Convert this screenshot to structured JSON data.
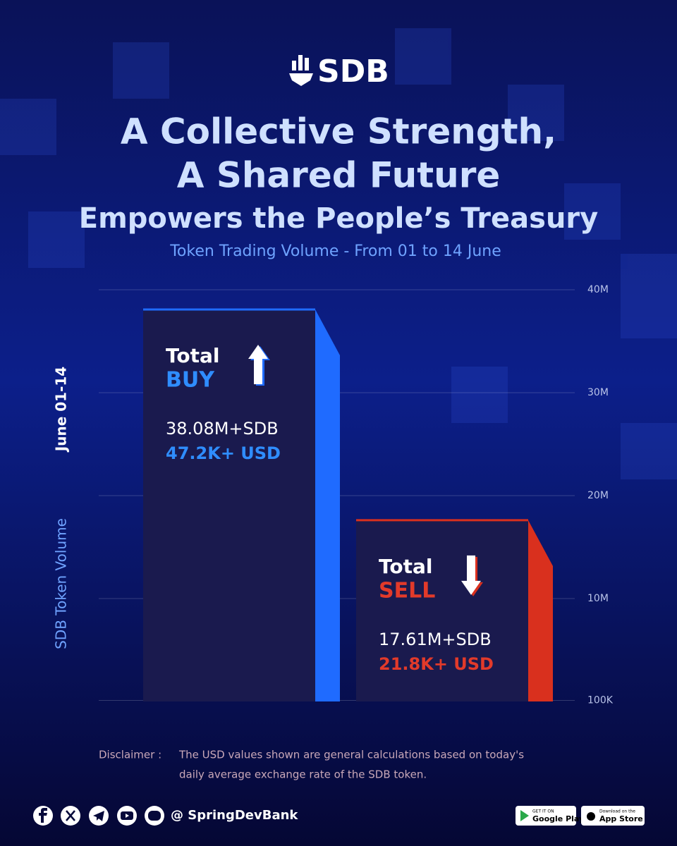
{
  "header": {
    "brand": "SDB"
  },
  "chart_data": {
    "type": "bar",
    "title_lines": [
      "A Collective Strength,",
      "A Shared Future"
    ],
    "subtitle": "Empowers the People’s Treasury",
    "caption": "Token Trading Volume - From 01 to 14 June",
    "y_axis_label": "SDB Token Volume",
    "period_label": "June 01-14",
    "categories": [
      "BUY",
      "SELL"
    ],
    "bar_titles": [
      "Total",
      "Total"
    ],
    "values": [
      38080000,
      17610000
    ],
    "value_labels": [
      "38.08M+SDB",
      "17.61M+SDB"
    ],
    "usd_labels": [
      "47.2K+ USD",
      "21.8K+ USD"
    ],
    "colors": [
      "#1f6bff",
      "#d9301e"
    ],
    "label_colors": [
      "#2f8dff",
      "#e23a2a"
    ],
    "ylim": [
      0,
      40000000
    ],
    "yticks": [
      {
        "value": 100000,
        "label": "100K"
      },
      {
        "value": 10000000,
        "label": "10M"
      },
      {
        "value": 20000000,
        "label": "20M"
      },
      {
        "value": 30000000,
        "label": "30M"
      },
      {
        "value": 40000000,
        "label": "40M"
      }
    ],
    "grid": true
  },
  "disclaimer": {
    "label": "Disclaimer :",
    "lines": [
      "The USD values shown are general calculations based on today's",
      "daily average exchange rate of the SDB token."
    ]
  },
  "footer": {
    "handle": "@ SpringDevBank",
    "google_top": "GET IT ON",
    "google": "Google Play",
    "apple_top": "Download on the",
    "apple": "App Store"
  }
}
